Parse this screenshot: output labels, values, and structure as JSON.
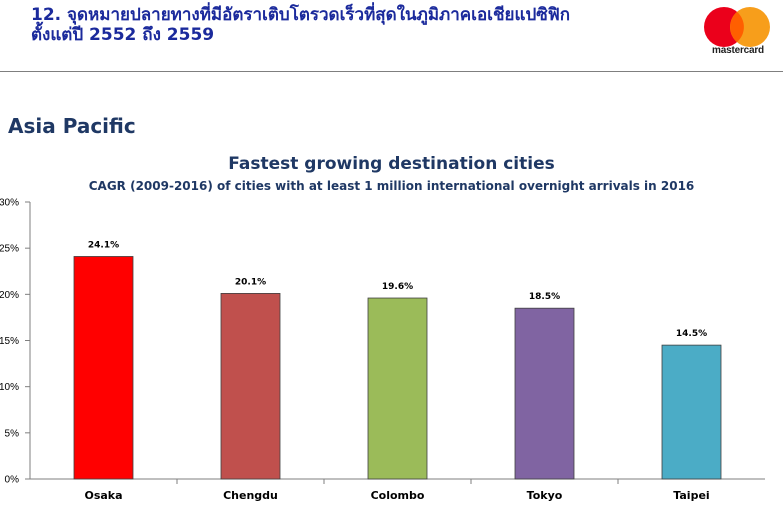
{
  "header": {
    "title_line1": "12. จุดหมายปลายทางที่มีอัตราเติบโตรวดเร็วที่สุดในภูมิภาคเอเชียแปซิฟิก",
    "title_line2": "ตั้งแต่ปี 2552 ถึง 2559",
    "logo_text": "mastercard",
    "logo_colors": [
      "#eb001b",
      "#f79e1b",
      "#ff5f00"
    ]
  },
  "section_heading": "Asia Pacific",
  "chart_data": {
    "type": "bar",
    "title": "Fastest growing destination cities",
    "subtitle": "CAGR (2009-2016) of cities with at least 1 million international overnight arrivals in 2016",
    "categories": [
      "Osaka",
      "Chengdu",
      "Colombo",
      "Tokyo",
      "Taipei"
    ],
    "values": [
      24.1,
      20.1,
      19.6,
      18.5,
      14.5
    ],
    "data_labels": [
      "24.1%",
      "20.1%",
      "19.6%",
      "18.5%",
      "14.5%"
    ],
    "colors": [
      "#ff0000",
      "#c0504d",
      "#9bbb59",
      "#8064a2",
      "#4bacc6"
    ],
    "ylim": [
      0,
      30
    ],
    "yticks": [
      0,
      5,
      10,
      15,
      20,
      25,
      30
    ],
    "ytick_labels": [
      "0%",
      "5%",
      "10%",
      "15%",
      "20%",
      "25%",
      "30%"
    ],
    "xlabel": "",
    "ylabel": "",
    "grid": false,
    "legend": "none"
  }
}
